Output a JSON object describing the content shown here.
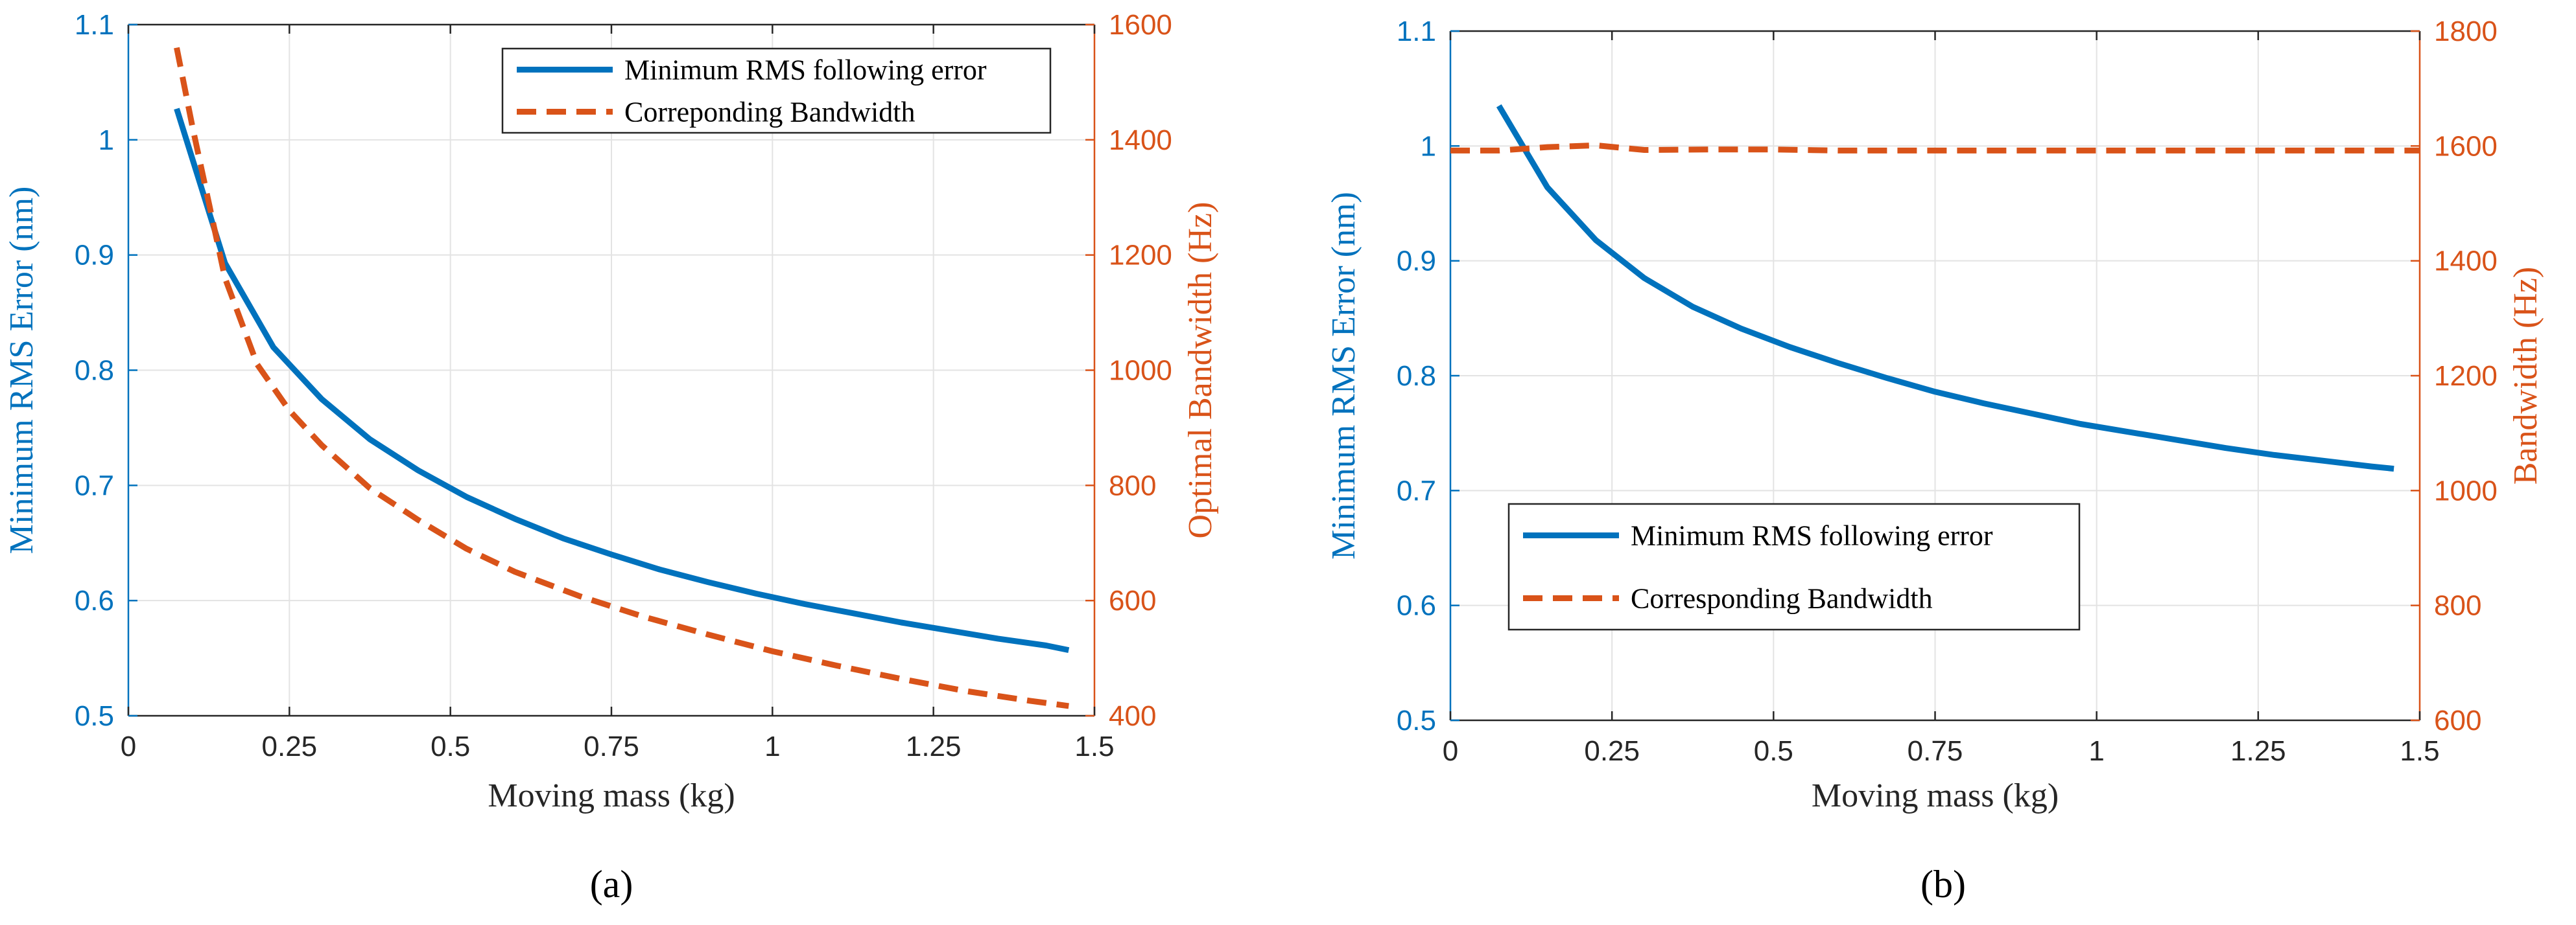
{
  "chart_data": [
    {
      "type": "line",
      "panel_label": "(a)",
      "xlabel": "Moving mass (kg)",
      "ylabel_left": "Minimum RMS Error (nm)",
      "ylabel_right": "Optimal Bandwidth (Hz)",
      "xlim": [
        0,
        1.5
      ],
      "ylim_left": [
        0.5,
        1.1
      ],
      "ylim_right": [
        400,
        1600
      ],
      "xticks": [
        "0",
        "0.25",
        "0.5",
        "0.75",
        "1",
        "1.25",
        "1.5"
      ],
      "yticks_left": [
        "0.5",
        "0.6",
        "0.7",
        "0.8",
        "0.9",
        "1",
        "1.1"
      ],
      "yticks_right": [
        "400",
        "600",
        "800",
        "1000",
        "1200",
        "1400",
        "1600"
      ],
      "grid": true,
      "legend_position": "top-right",
      "series": [
        {
          "name": "Minimum RMS following error",
          "axis": "left",
          "color": "#0072BD",
          "style": "solid",
          "x": [
            0.075,
            0.15,
            0.225,
            0.3,
            0.375,
            0.45,
            0.525,
            0.6,
            0.675,
            0.75,
            0.825,
            0.9,
            0.975,
            1.05,
            1.125,
            1.2,
            1.275,
            1.35,
            1.425,
            1.46
          ],
          "y": [
            1.027,
            0.893,
            0.82,
            0.775,
            0.74,
            0.713,
            0.69,
            0.671,
            0.654,
            0.64,
            0.627,
            0.616,
            0.606,
            0.597,
            0.589,
            0.581,
            0.574,
            0.567,
            0.561,
            0.557
          ]
        },
        {
          "name": "Correponding Bandwidth",
          "axis": "right",
          "color": "#D95319",
          "style": "dashed",
          "x": [
            0.075,
            0.1,
            0.125,
            0.15,
            0.2,
            0.25,
            0.3,
            0.375,
            0.45,
            0.525,
            0.6,
            0.7,
            0.8,
            0.9,
            1.0,
            1.1,
            1.2,
            1.3,
            1.4,
            1.46
          ],
          "y": [
            1560,
            1420,
            1290,
            1160,
            1010,
            930,
            870,
            795,
            740,
            690,
            650,
            608,
            572,
            541,
            512,
            487,
            464,
            443,
            426,
            417
          ]
        }
      ]
    },
    {
      "type": "line",
      "panel_label": "(b)",
      "xlabel": "Moving mass (kg)",
      "ylabel_left": "Minimum RMS Error (nm)",
      "ylabel_right": "Bandwidth (Hz)",
      "xlim": [
        0,
        1.5
      ],
      "ylim_left": [
        0.5,
        1.1
      ],
      "ylim_right": [
        600,
        1800
      ],
      "xticks": [
        "0",
        "0.25",
        "0.5",
        "0.75",
        "1",
        "1.25",
        "1.5"
      ],
      "yticks_left": [
        "0.5",
        "0.6",
        "0.7",
        "0.8",
        "0.9",
        "1",
        "1.1"
      ],
      "yticks_right": [
        "600",
        "800",
        "1000",
        "1200",
        "1400",
        "1600",
        "1800"
      ],
      "grid": true,
      "legend_position": "bottom-left",
      "series": [
        {
          "name": "Minimum RMS following error",
          "axis": "left",
          "color": "#0072BD",
          "style": "solid",
          "x": [
            0.075,
            0.15,
            0.225,
            0.3,
            0.375,
            0.45,
            0.525,
            0.6,
            0.675,
            0.75,
            0.825,
            0.9,
            0.975,
            1.05,
            1.125,
            1.2,
            1.275,
            1.35,
            1.425,
            1.46
          ],
          "y": [
            1.035,
            0.964,
            0.918,
            0.885,
            0.86,
            0.841,
            0.825,
            0.811,
            0.798,
            0.786,
            0.776,
            0.767,
            0.758,
            0.751,
            0.744,
            0.737,
            0.731,
            0.726,
            0.721,
            0.719
          ]
        },
        {
          "name": "Corresponding Bandwidth",
          "axis": "right",
          "color": "#D95319",
          "style": "dashed",
          "x": [
            0,
            0.075,
            0.15,
            0.225,
            0.3,
            0.4,
            0.5,
            0.6,
            0.8,
            1.0,
            1.2,
            1.4,
            1.5
          ],
          "y": [
            1592,
            1592,
            1598,
            1601,
            1593,
            1594,
            1594,
            1592,
            1592,
            1592,
            1592,
            1592,
            1592
          ]
        }
      ]
    }
  ]
}
